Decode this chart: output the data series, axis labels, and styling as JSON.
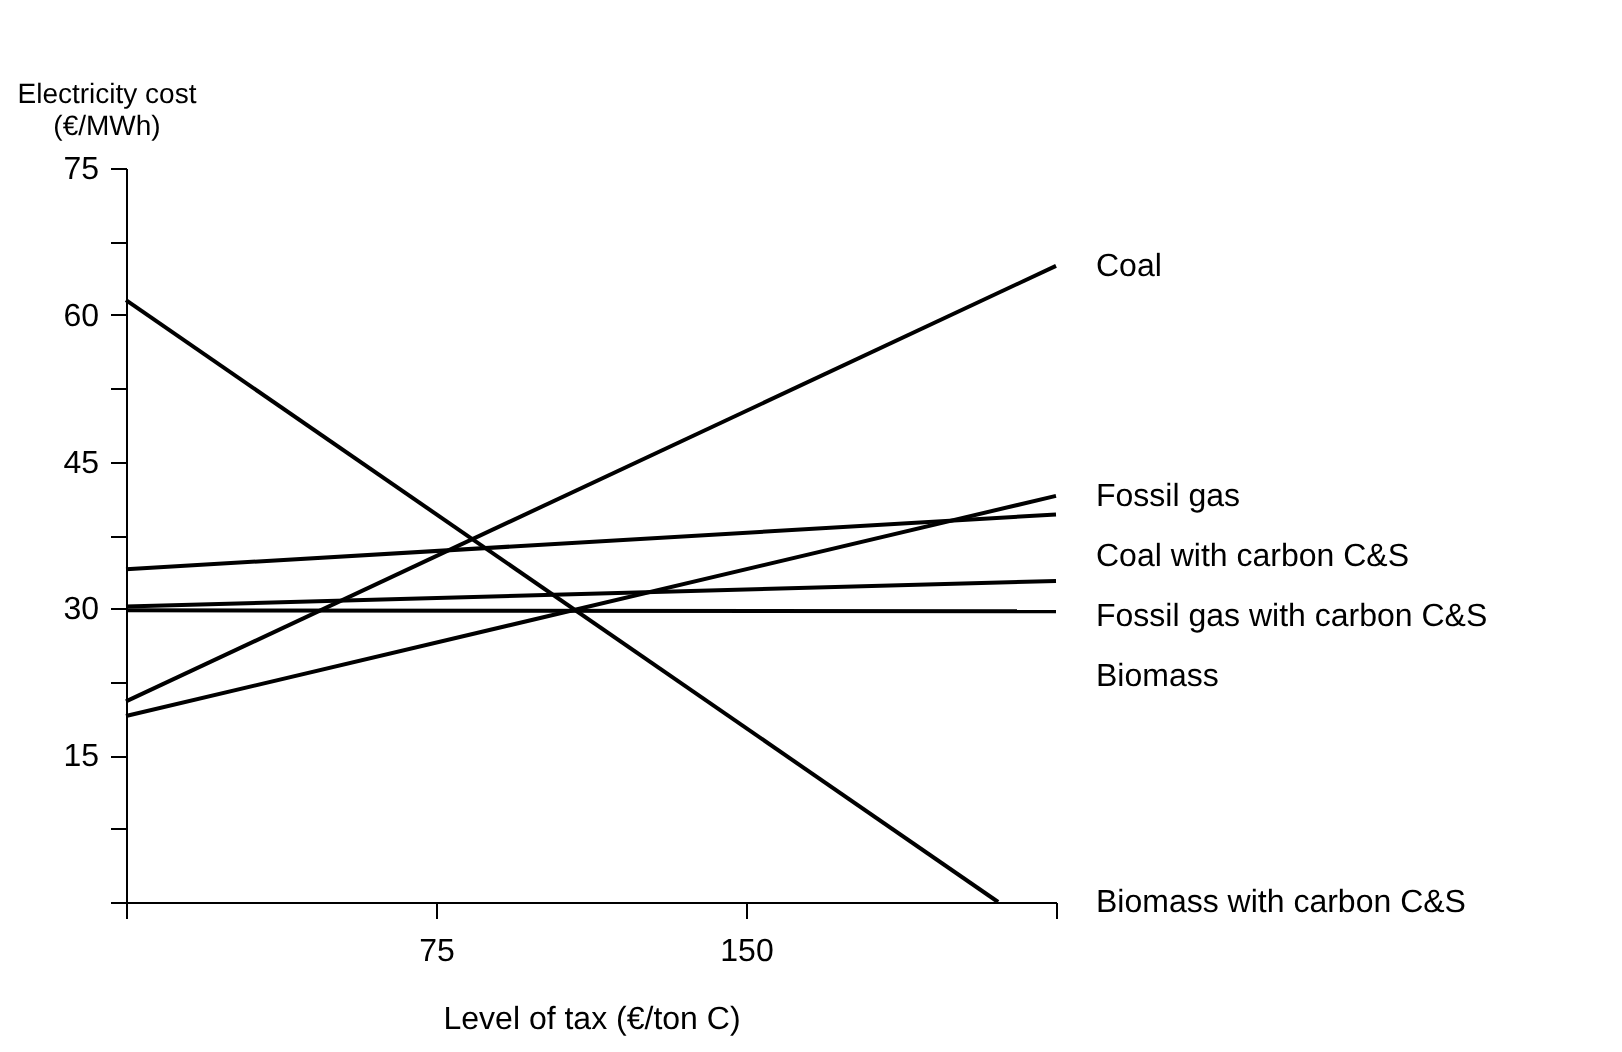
{
  "chart_data": {
    "type": "line",
    "xlabel": "Level of tax (€/ton C)",
    "ylabel": "Electricity cost (€/MWh)",
    "x": [
      0,
      225
    ],
    "series": [
      {
        "name": "Coal",
        "color": "#000000",
        "values": [
          20.5,
          65
        ]
      },
      {
        "name": "Fossil gas",
        "color": "#000000",
        "values": [
          19,
          41.5
        ]
      },
      {
        "name": "Coal with carbon C&S",
        "color": "#000000",
        "values": [
          34,
          39.6
        ]
      },
      {
        "name": "Fossil gas with carbon C&S",
        "color": "#000000",
        "values": [
          30.2,
          32.8
        ]
      },
      {
        "name": "Biomass",
        "color": "#000000",
        "values": [
          29.8,
          29.7
        ]
      },
      {
        "name": "Biomass with carbon C&S",
        "color": "#000000",
        "x": [
          0,
          211
        ],
        "values": [
          61.5,
          0
        ]
      }
    ],
    "xlim": [
      0,
      225
    ],
    "xticks": [
      {
        "value": 0,
        "label": null
      },
      75,
      150,
      {
        "value": 225,
        "label": null
      }
    ],
    "ylim": [
      0,
      75
    ],
    "yticks": [
      {
        "value": 0,
        "label": null
      },
      {
        "value": 7.5,
        "label": null
      },
      15,
      {
        "value": 22.5,
        "label": null
      },
      30,
      {
        "value": 37.5,
        "label": null
      },
      45,
      {
        "value": 52.5,
        "label": null
      },
      60,
      {
        "value": 67.5,
        "label": null
      },
      75
    ],
    "grid": false,
    "legend": false,
    "marker": "none",
    "line_style": "solid"
  }
}
